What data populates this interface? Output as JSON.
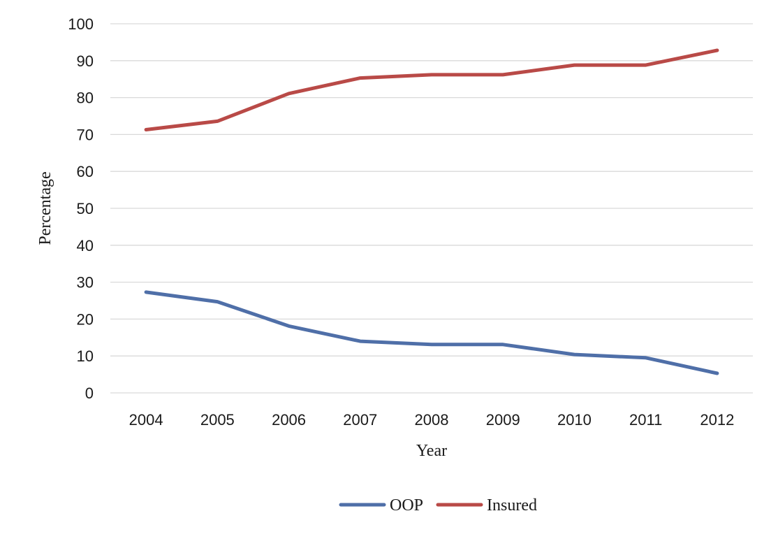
{
  "chart_data": {
    "type": "line",
    "title": "",
    "xlabel": "Year",
    "ylabel": "Percentage",
    "categories": [
      "2004",
      "2005",
      "2006",
      "2007",
      "2008",
      "2009",
      "2010",
      "2011",
      "2012"
    ],
    "yticks": [
      "0",
      "10",
      "20",
      "30",
      "40",
      "50",
      "60",
      "70",
      "80",
      "90",
      "100"
    ],
    "ylim": [
      0,
      100
    ],
    "grid": true,
    "legend_position": "bottom",
    "series": [
      {
        "name": "OOP",
        "color": "#4f6fa8",
        "values": [
          27.3,
          24.7,
          18.1,
          14.0,
          13.1,
          13.1,
          10.4,
          9.5,
          5.3
        ]
      },
      {
        "name": "Insured",
        "color": "#b94a47",
        "values": [
          71.3,
          73.6,
          81.1,
          85.3,
          86.2,
          86.2,
          88.8,
          88.8,
          92.8
        ]
      }
    ]
  }
}
